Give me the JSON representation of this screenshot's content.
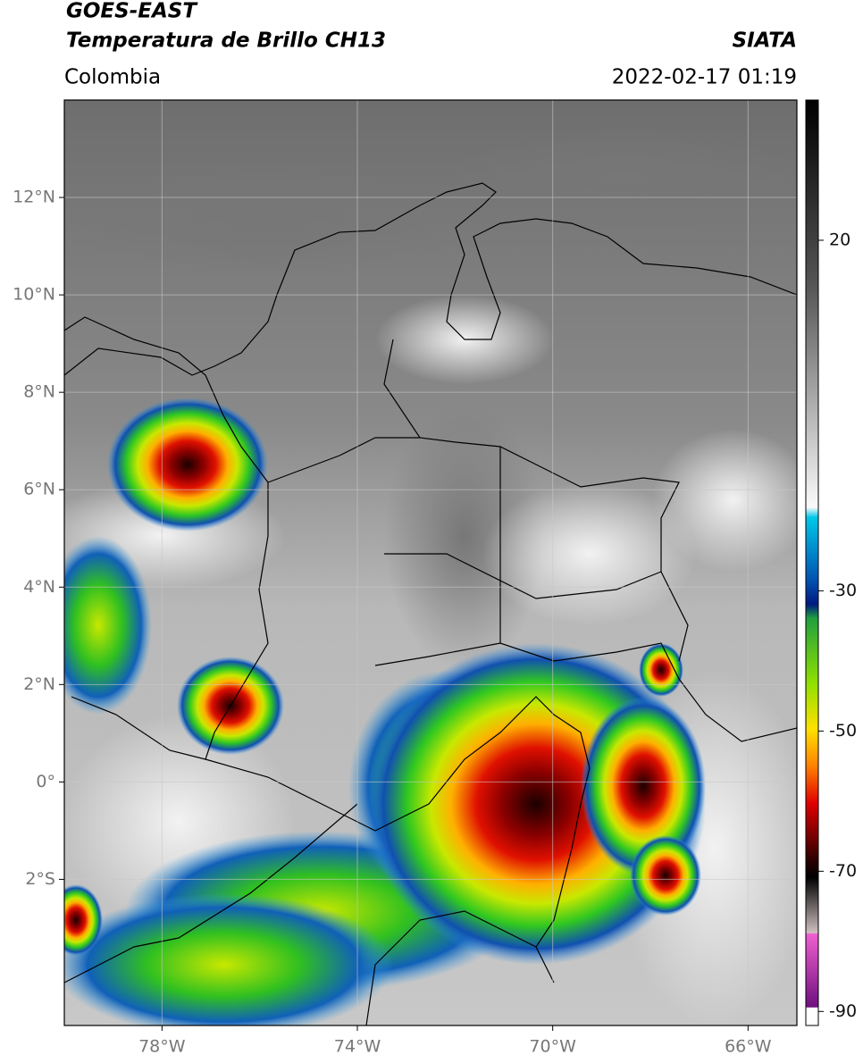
{
  "header": {
    "title": "GOES-EAST",
    "subtitle": "Temperatura de Brillo CH13",
    "region": "Colombia",
    "source": "SIATA",
    "datetime": "2022-02-17 01:19"
  },
  "map": {
    "xlim": [
      -80,
      -65
    ],
    "ylim": [
      -5,
      14
    ],
    "xticks": [
      {
        "value": -78,
        "label": "78°W"
      },
      {
        "value": -74,
        "label": "74°W"
      },
      {
        "value": -70,
        "label": "70°W"
      },
      {
        "value": -66,
        "label": "66°W"
      }
    ],
    "yticks": [
      {
        "value": 12,
        "label": "12°N"
      },
      {
        "value": 10,
        "label": "10°N"
      },
      {
        "value": 8,
        "label": "8°N"
      },
      {
        "value": 6,
        "label": "6°N"
      },
      {
        "value": 4,
        "label": "4°N"
      },
      {
        "value": 2,
        "label": "2°N"
      },
      {
        "value": 0,
        "label": "0°"
      },
      {
        "value": -2,
        "label": "2°S"
      }
    ],
    "grid": true
  },
  "colorbar": {
    "lim": [
      -92,
      40
    ],
    "ticks": [
      20,
      -30,
      -50,
      -70,
      -90
    ]
  }
}
